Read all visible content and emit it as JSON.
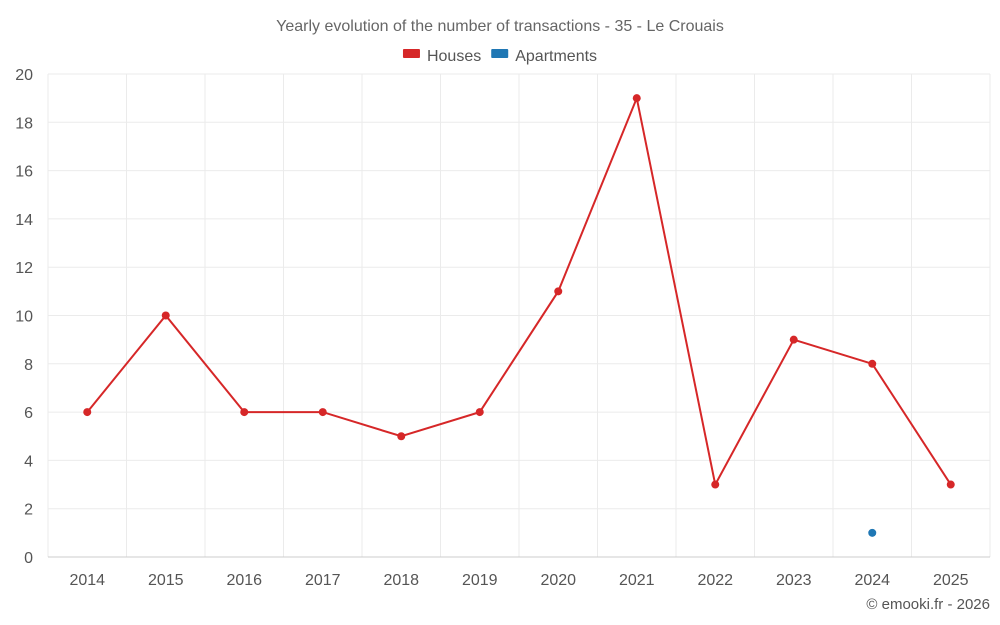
{
  "chart_data": {
    "type": "line",
    "title": "Yearly evolution of the number of transactions - 35 - Le Crouais",
    "categories": [
      "2014",
      "2015",
      "2016",
      "2017",
      "2018",
      "2019",
      "2020",
      "2021",
      "2022",
      "2023",
      "2024",
      "2025"
    ],
    "ylim": [
      0,
      20
    ],
    "yticks": [
      0,
      2,
      4,
      6,
      8,
      10,
      12,
      14,
      16,
      18,
      20
    ],
    "grid": true,
    "legend_position": "top-center",
    "series": [
      {
        "name": "Houses",
        "color": "#d62728",
        "values": [
          6,
          10,
          6,
          6,
          5,
          6,
          11,
          19,
          3,
          9,
          8,
          3
        ]
      },
      {
        "name": "Apartments",
        "color": "#1f77b4",
        "values": [
          null,
          null,
          null,
          null,
          null,
          null,
          null,
          null,
          null,
          null,
          1,
          null
        ]
      }
    ]
  },
  "credit": "© emooki.fr - 2026"
}
